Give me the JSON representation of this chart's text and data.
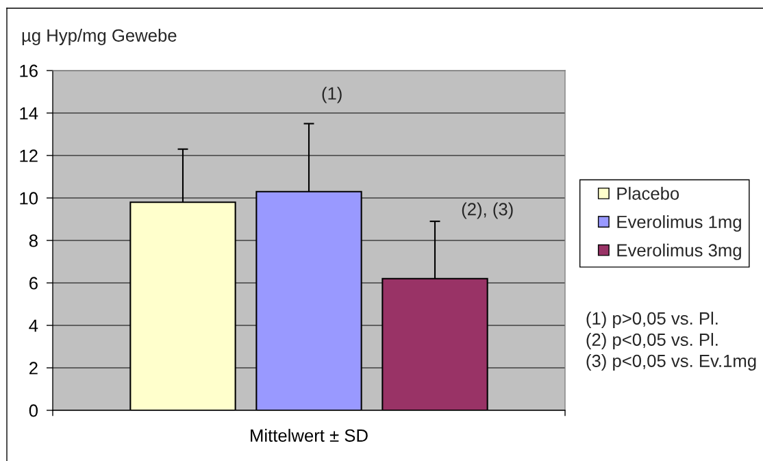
{
  "chart_data": {
    "type": "bar",
    "ylabel": "µg Hyp/mg Gewebe",
    "categories": [
      "Mittelwert ± SD"
    ],
    "series": [
      {
        "name": "Placebo",
        "color": "#ffffcc",
        "values": [
          9.8
        ],
        "errors": [
          [
            9.8,
            12.3
          ]
        ]
      },
      {
        "name": "Everolimus 1mg",
        "color": "#9999ff",
        "values": [
          10.3
        ],
        "errors": [
          [
            10.3,
            13.5
          ]
        ]
      },
      {
        "name": "Everolimus 3mg",
        "color": "#993366",
        "values": [
          6.2
        ],
        "errors": [
          [
            6.2,
            8.9
          ]
        ]
      }
    ],
    "ylim": [
      0,
      16
    ],
    "yticks": [
      0,
      2,
      4,
      6,
      8,
      10,
      12,
      14,
      16
    ],
    "grid": "y",
    "legend": "right",
    "annotations": [
      "(1)",
      "(2), (3)",
      "(1) p>0,05 vs. Pl.",
      "(2) p<0,05 vs. Pl.",
      "(3) p<0,05 vs. Ev.1mg"
    ]
  }
}
